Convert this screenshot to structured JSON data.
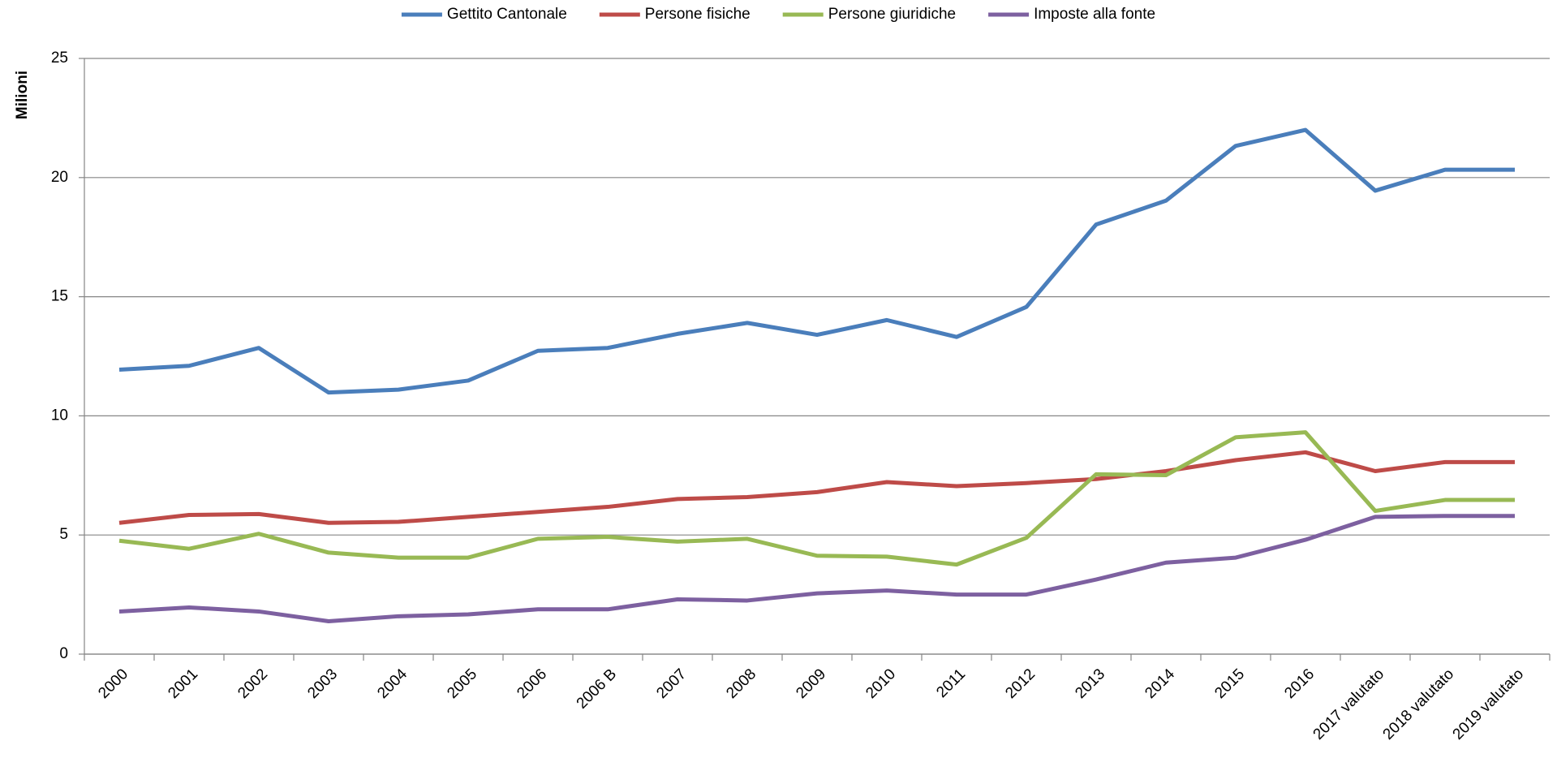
{
  "chart_data": {
    "type": "line",
    "y_label": "Milioni",
    "categories": [
      "2000",
      "2001",
      "2002",
      "2003",
      "2004",
      "2005",
      "2006",
      "2006 B",
      "2007",
      "2008",
      "2009",
      "2010",
      "2011",
      "2012",
      "2013",
      "2014",
      "2015",
      "2016",
      "2017 valutato",
      "2018 valutato",
      "2019 valutato"
    ],
    "series": [
      {
        "name": "Gettito Cantonale",
        "color": "#4a7ebb",
        "values": [
          11.94,
          12.1,
          12.85,
          10.98,
          11.1,
          11.48,
          12.73,
          12.85,
          13.44,
          13.9,
          13.4,
          14.02,
          13.31,
          14.57,
          18.03,
          19.03,
          21.33,
          22.0,
          19.45,
          20.33,
          20.33
        ]
      },
      {
        "name": "Persone fisiche",
        "color": "#be4b48",
        "values": [
          5.51,
          5.84,
          5.88,
          5.51,
          5.55,
          5.76,
          5.97,
          6.18,
          6.51,
          6.59,
          6.8,
          7.22,
          7.05,
          7.18,
          7.35,
          7.68,
          8.14,
          8.47,
          7.68,
          8.06,
          8.06
        ]
      },
      {
        "name": "Persone giuridiche",
        "color": "#98b954",
        "values": [
          4.76,
          4.42,
          5.05,
          4.26,
          4.05,
          4.05,
          4.84,
          4.92,
          4.72,
          4.84,
          4.13,
          4.09,
          3.76,
          4.88,
          7.55,
          7.51,
          9.1,
          9.31,
          6.01,
          6.47,
          6.47
        ]
      },
      {
        "name": "Imposte alla fonte",
        "color": "#7d60a0",
        "values": [
          1.79,
          1.96,
          1.79,
          1.38,
          1.59,
          1.67,
          1.88,
          1.88,
          2.3,
          2.25,
          2.55,
          2.67,
          2.5,
          2.5,
          3.13,
          3.84,
          4.05,
          4.8,
          5.76,
          5.8,
          5.8
        ]
      }
    ],
    "ylim": [
      0,
      25
    ],
    "yticks": [
      0,
      5,
      10,
      15,
      20,
      25
    ],
    "grid": true,
    "legend": "top"
  }
}
